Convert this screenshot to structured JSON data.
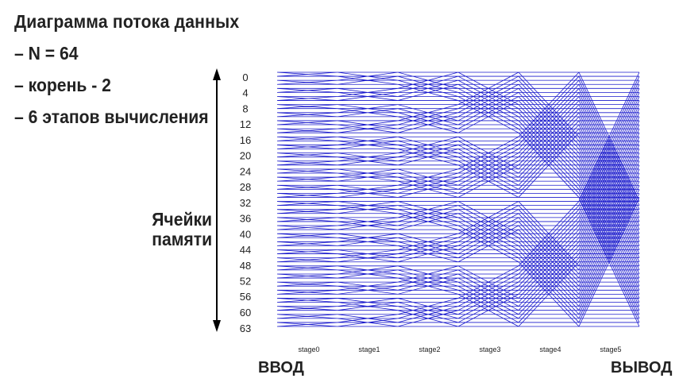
{
  "notes": {
    "title": "Диаграмма потока данных",
    "items": [
      "– N = 64",
      "– корень - 2",
      "– 6 этапов вычисления"
    ]
  },
  "axis_label_line1": "Ячейки",
  "axis_label_line2": "памяти",
  "input_label": "ВВОД",
  "output_label": "ВЫВОД",
  "n_points": 64,
  "row_labels": [
    "0",
    "4",
    "8",
    "12",
    "16",
    "20",
    "24",
    "28",
    "32",
    "36",
    "40",
    "44",
    "48",
    "52",
    "56",
    "60",
    "63"
  ],
  "stages": [
    "stage0",
    "stage1",
    "stage2",
    "stage3",
    "stage4",
    "stage5"
  ],
  "colors": {
    "lines": "#1a1acc",
    "arrow": "#000000"
  }
}
